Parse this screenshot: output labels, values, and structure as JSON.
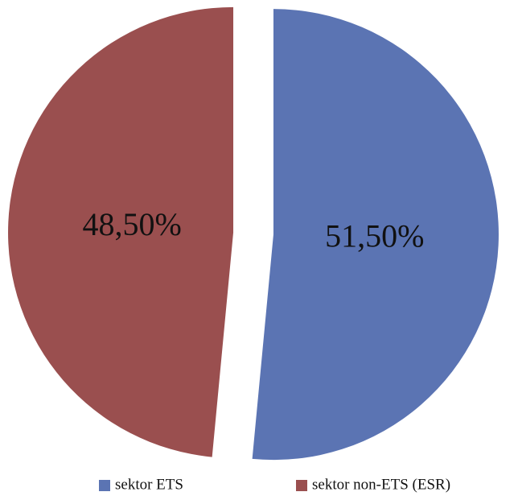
{
  "chart_data": {
    "type": "pie",
    "categories": [
      "sektor ETS",
      "sektor non-ETS (ESR)"
    ],
    "values": [
      51.5,
      48.5
    ],
    "value_labels": [
      "51,50%",
      "48,50%"
    ],
    "colors": [
      "#5b74b3",
      "#9a4f4f"
    ],
    "legend": "bottom"
  }
}
